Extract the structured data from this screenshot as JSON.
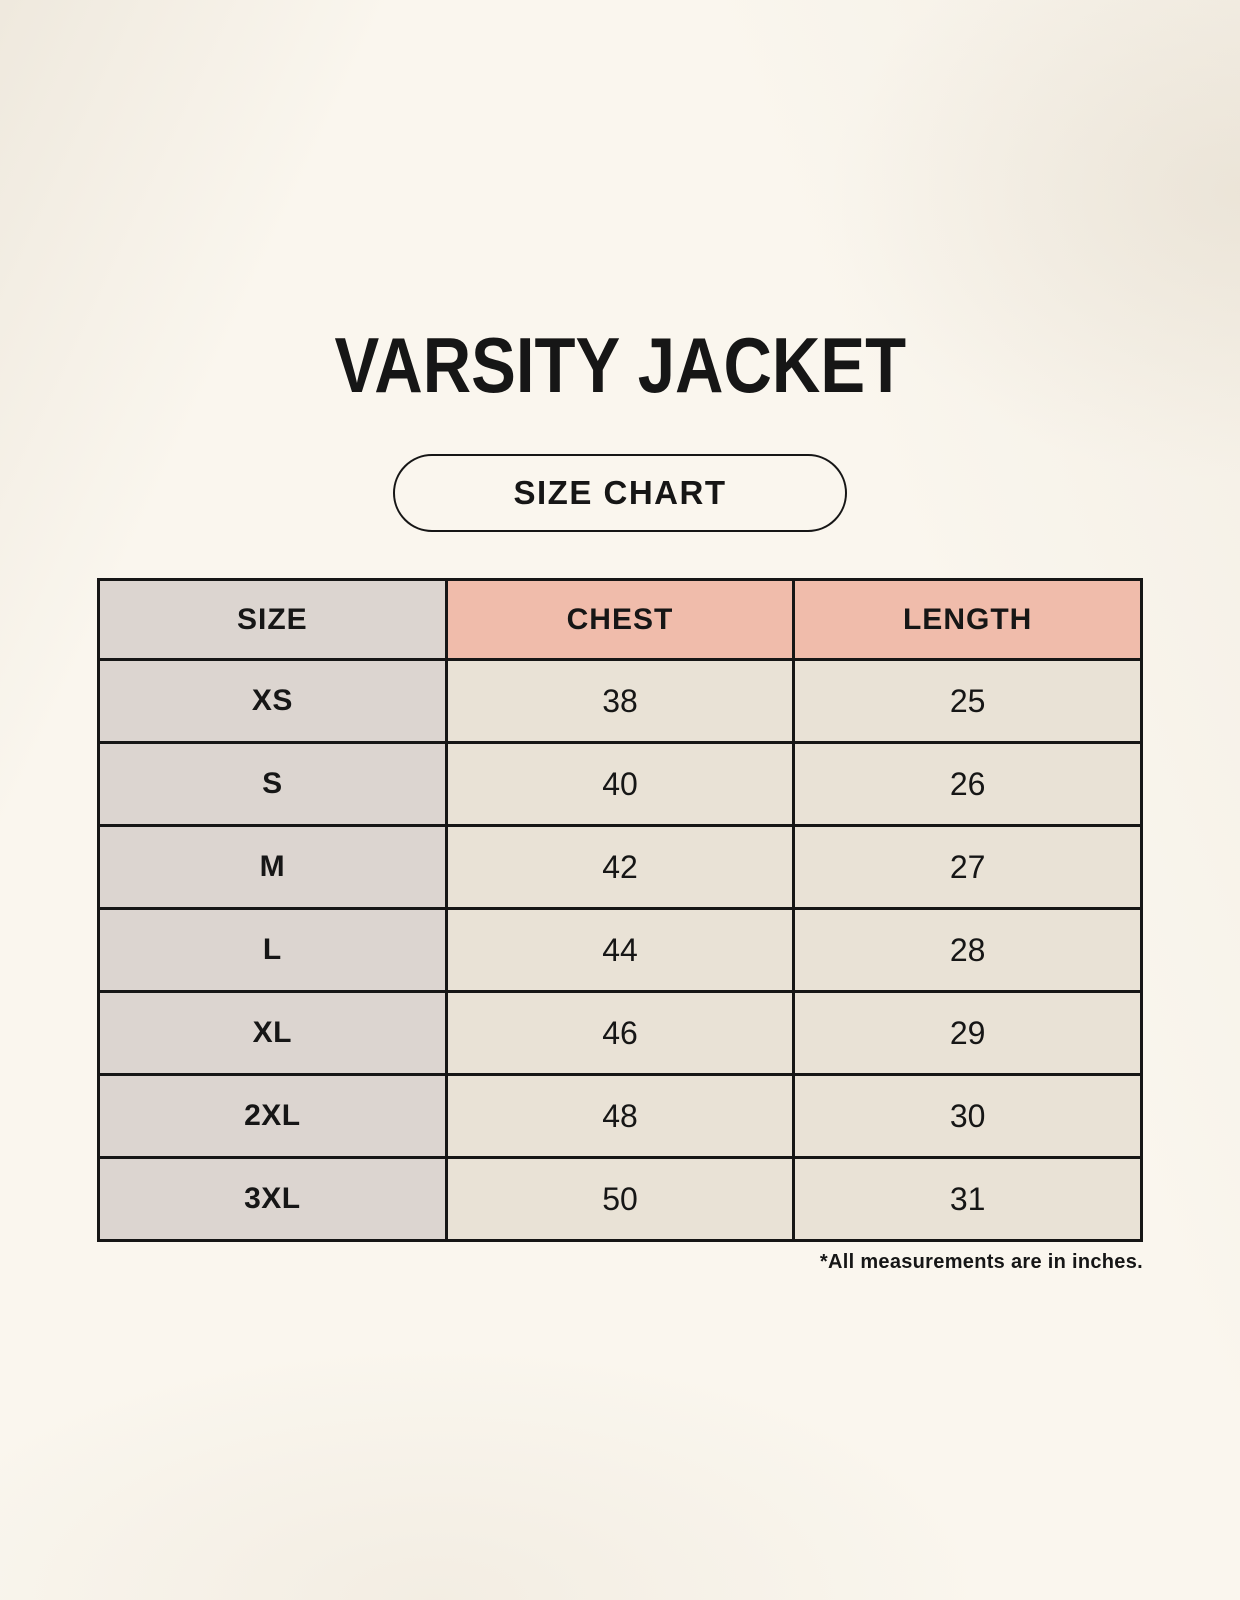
{
  "title": "VARSITY JACKET",
  "badge_label": "SIZE CHART",
  "footnote": "*All measurements are in inches.",
  "colors": {
    "page-bg": "#faf6ee",
    "accent-header-bg": "#f0bcab",
    "size-col-bg": "#dcd5d0",
    "value-cell-bg": "#e9e2d6",
    "table-border": "#161616",
    "text": "#161616"
  },
  "chart_data": {
    "type": "table",
    "columns": [
      "SIZE",
      "CHEST",
      "LENGTH"
    ],
    "rows": [
      [
        "XS",
        "38",
        "25"
      ],
      [
        "S",
        "40",
        "26"
      ],
      [
        "M",
        "42",
        "27"
      ],
      [
        "L",
        "44",
        "28"
      ],
      [
        "XL",
        "46",
        "29"
      ],
      [
        "2XL",
        "48",
        "30"
      ],
      [
        "3XL",
        "50",
        "31"
      ]
    ],
    "units_note": "*All measurements are in inches."
  }
}
